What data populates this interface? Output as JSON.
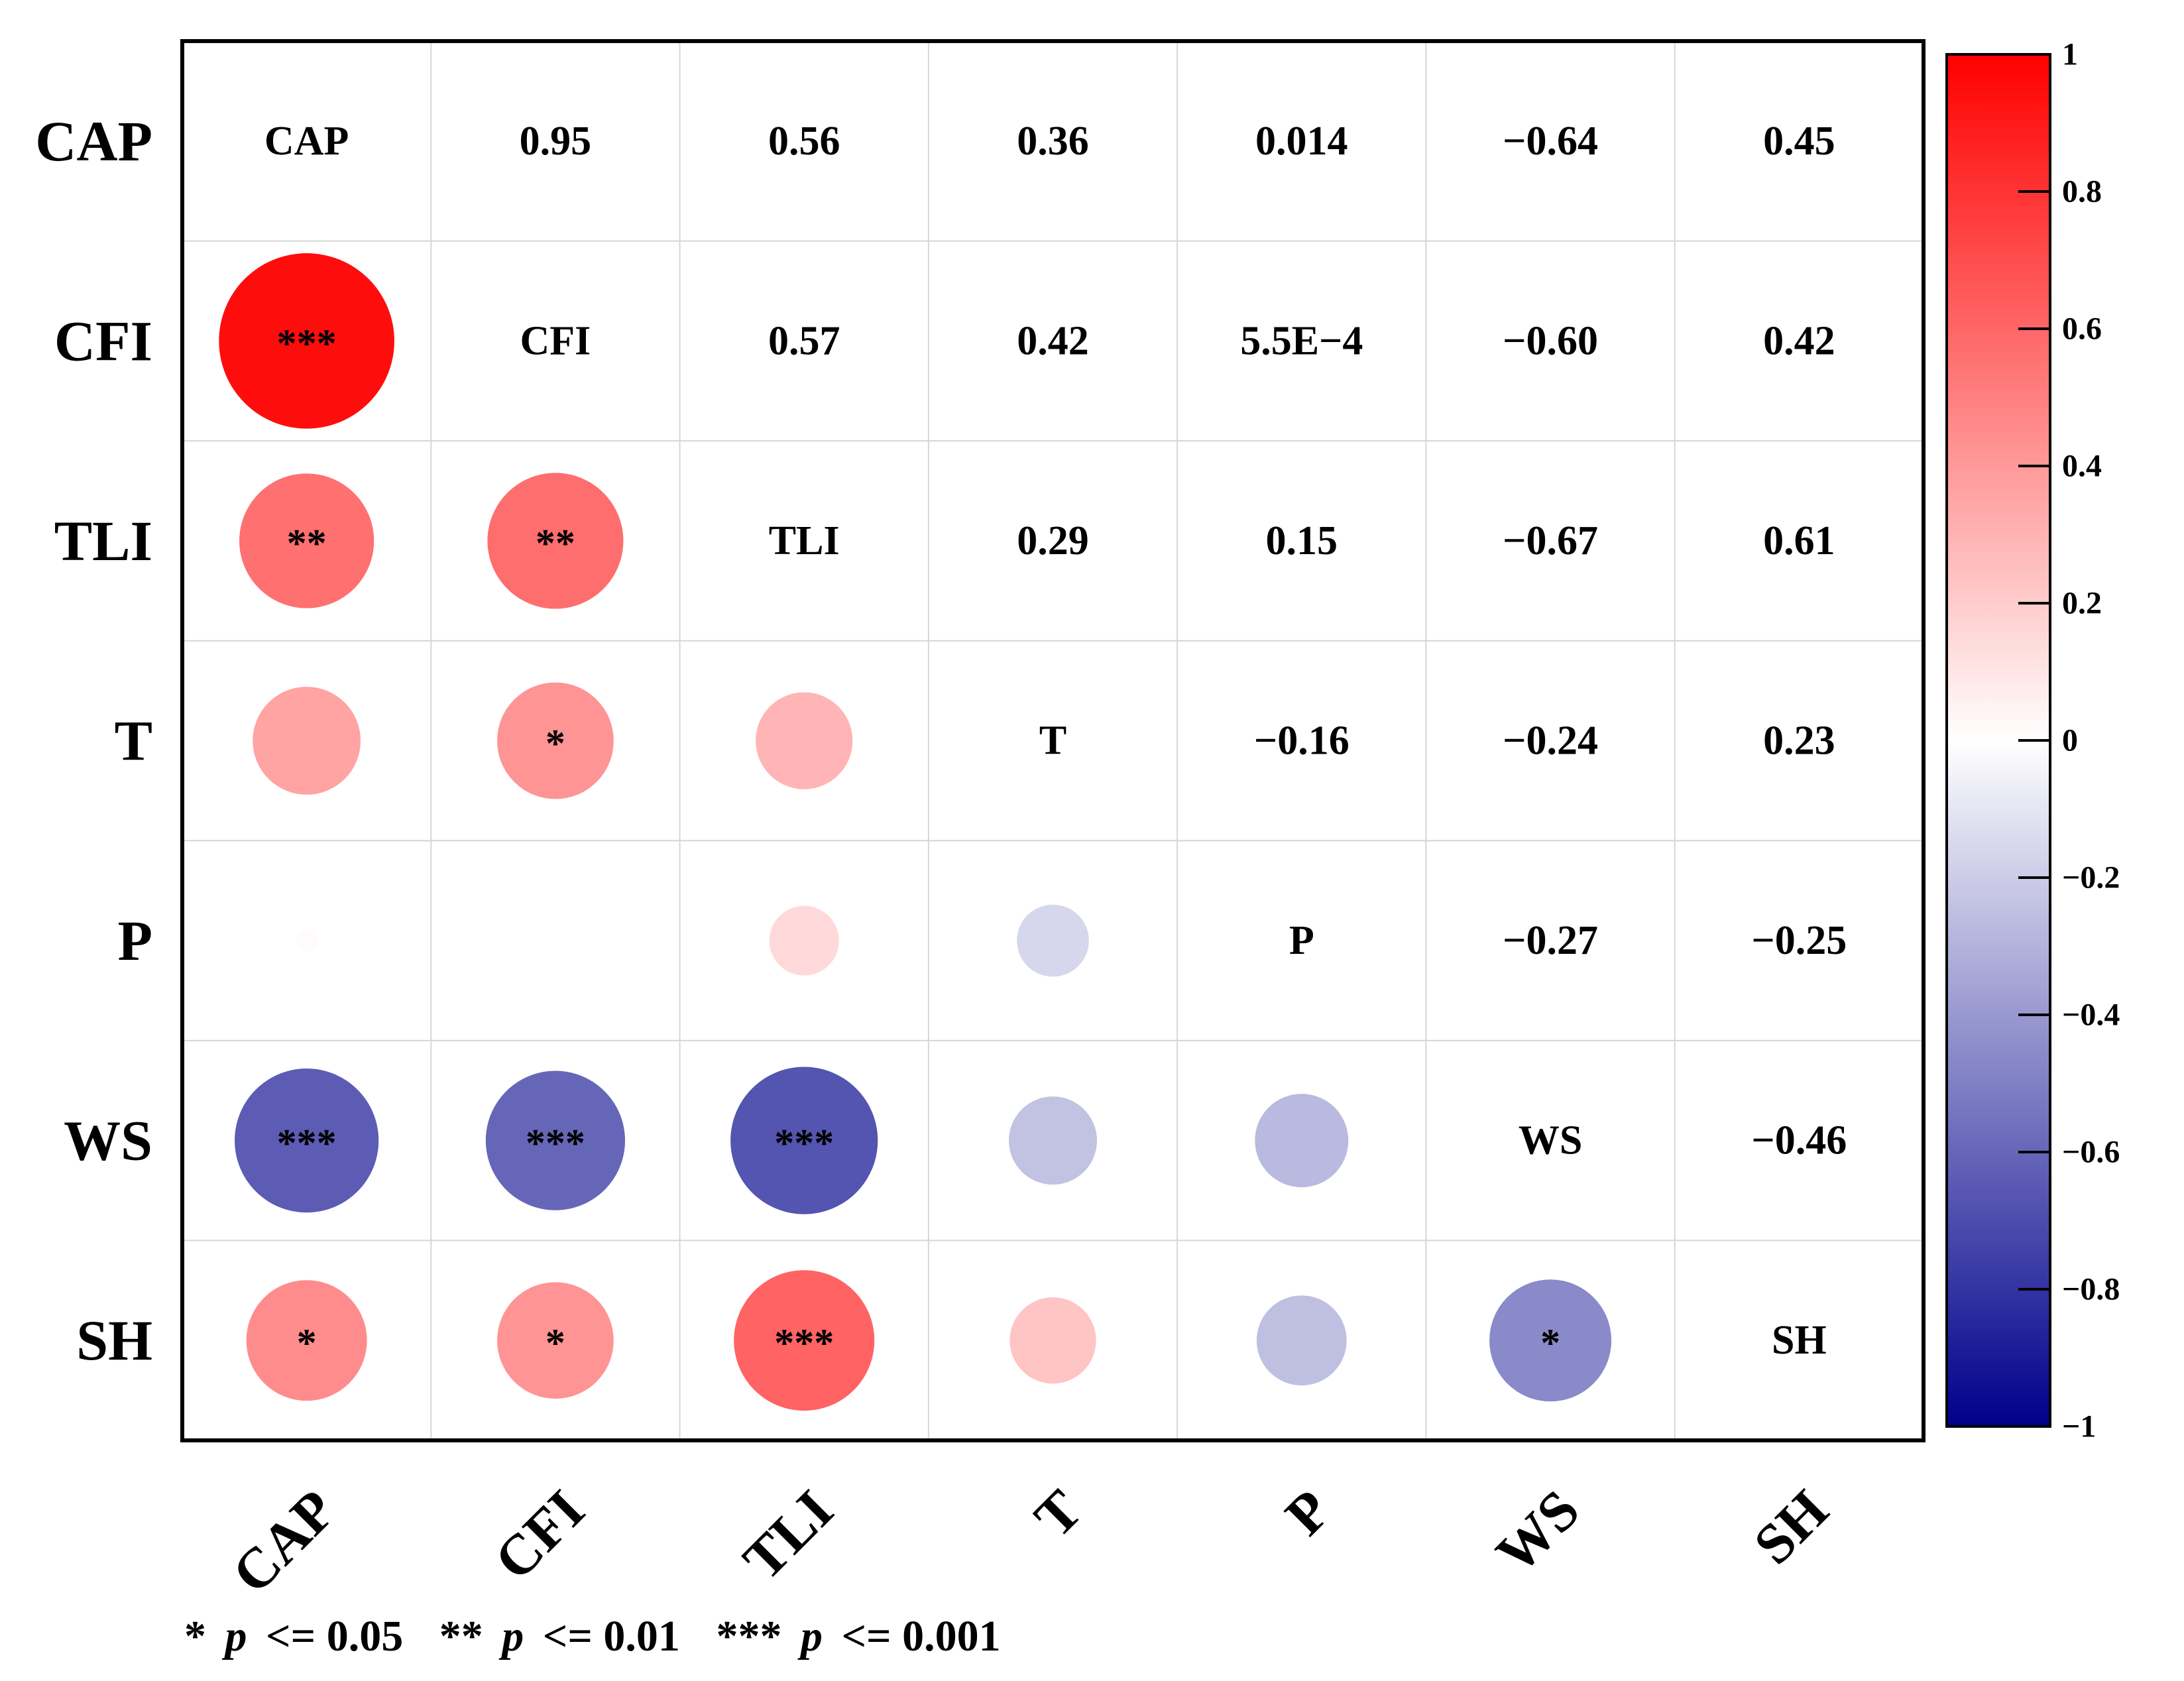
{
  "chart_data": {
    "type": "heatmap",
    "subtype": "correlation-matrix",
    "variables": [
      "CAP",
      "CFI",
      "TLI",
      "T",
      "P",
      "WS",
      "SH"
    ],
    "correlation_matrix": [
      [
        1,
        0.95,
        0.56,
        0.36,
        0.014,
        -0.64,
        0.45
      ],
      [
        0.95,
        1,
        0.57,
        0.42,
        0.00055,
        -0.6,
        0.42
      ],
      [
        0.56,
        0.57,
        1,
        0.29,
        0.15,
        -0.67,
        0.61
      ],
      [
        0.36,
        0.42,
        0.29,
        1,
        -0.16,
        -0.24,
        0.23
      ],
      [
        0.014,
        0.00055,
        0.15,
        -0.16,
        1,
        -0.27,
        -0.25
      ],
      [
        -0.64,
        -0.6,
        -0.67,
        -0.24,
        -0.27,
        1,
        -0.46
      ],
      [
        0.45,
        0.42,
        0.61,
        0.23,
        -0.25,
        -0.46,
        1
      ]
    ],
    "upper_labels": [
      [
        "",
        "0.95",
        "0.56",
        "0.36",
        "0.014",
        "−0.64",
        "0.45"
      ],
      [
        "",
        "",
        "0.57",
        "0.42",
        "5.5E−4",
        "−0.60",
        "0.42"
      ],
      [
        "",
        "",
        "",
        "0.29",
        "0.15",
        "−0.67",
        "0.61"
      ],
      [
        "",
        "",
        "",
        "",
        "−0.16",
        "−0.24",
        "0.23"
      ],
      [
        "",
        "",
        "",
        "",
        "",
        "−0.27",
        "−0.25"
      ],
      [
        "",
        "",
        "",
        "",
        "",
        "",
        "−0.46"
      ],
      [
        "",
        "",
        "",
        "",
        "",
        "",
        ""
      ]
    ],
    "significance": [
      [
        "",
        "",
        "",
        "",
        "",
        "",
        ""
      ],
      [
        "***",
        "",
        "",
        "",
        "",
        "",
        ""
      ],
      [
        "**",
        "**",
        "",
        "",
        "",
        "",
        ""
      ],
      [
        "",
        "*",
        "",
        "",
        "",
        "",
        ""
      ],
      [
        "",
        "",
        "",
        "",
        "",
        "",
        ""
      ],
      [
        "***",
        "***",
        "***",
        "",
        "",
        "",
        ""
      ],
      [
        "*",
        "*",
        "***",
        "",
        "",
        "*",
        ""
      ]
    ],
    "colorbar": {
      "range": [
        -1,
        1
      ],
      "ticks": [
        1,
        0.8,
        0.6,
        0.4,
        0.2,
        0,
        -0.2,
        -0.4,
        -0.6,
        -0.8,
        -1
      ],
      "tick_labels": [
        "1",
        "0.8",
        "0.6",
        "0.4",
        "0.2",
        "0",
        "−0.2",
        "−0.4",
        "−0.6",
        "−0.8",
        "−1"
      ],
      "colors": {
        "negative": "#00008b",
        "zero": "#ffffff",
        "positive": "#ff0000"
      }
    },
    "lower_triangle": "circles sized and colored by correlation",
    "upper_triangle": "correlation values as text",
    "diagonal": "variable names",
    "grid": true,
    "legend_note": {
      "star1": "*",
      "label1": "p",
      "cond1": "<= 0.05",
      "star2": "**",
      "label2": "p",
      "cond2": "<= 0.01",
      "star3": "***",
      "label3": "p",
      "cond3": "<= 0.001"
    }
  }
}
